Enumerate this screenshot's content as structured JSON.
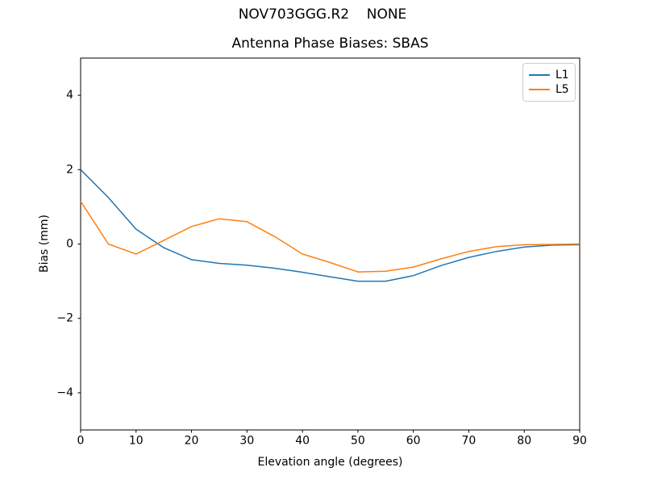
{
  "figure": {
    "suptitle": "NOV703GGG.R2    NONE",
    "axes_title": "Antenna Phase Biases: SBAS",
    "xlabel": "Elevation angle (degrees)",
    "ylabel": "Bias (mm)"
  },
  "chart_data": {
    "type": "line",
    "title": "Antenna Phase Biases: SBAS",
    "suptitle": "NOV703GGG.R2    NONE",
    "xlabel": "Elevation angle (degrees)",
    "ylabel": "Bias (mm)",
    "xlim": [
      0,
      90
    ],
    "ylim": [
      -5,
      5
    ],
    "grid": false,
    "legend_position": "upper right",
    "x_ticks": [
      0,
      10,
      20,
      30,
      40,
      50,
      60,
      70,
      80,
      90
    ],
    "x_tick_labels": [
      "0",
      "10",
      "20",
      "30",
      "40",
      "50",
      "60",
      "70",
      "80",
      "90"
    ],
    "y_ticks": [
      -4,
      -2,
      0,
      2,
      4
    ],
    "y_tick_labels": [
      "−4",
      "−2",
      "0",
      "2",
      "4"
    ],
    "x": [
      0,
      5,
      10,
      15,
      20,
      25,
      30,
      35,
      40,
      45,
      50,
      55,
      60,
      65,
      70,
      75,
      80,
      85,
      90
    ],
    "series": [
      {
        "name": "L1",
        "color": "#1f77b4",
        "values": [
          2.0,
          1.25,
          0.4,
          -0.1,
          -0.42,
          -0.52,
          -0.57,
          -0.65,
          -0.76,
          -0.88,
          -1.0,
          -1.0,
          -0.85,
          -0.58,
          -0.36,
          -0.2,
          -0.08,
          -0.03,
          -0.02
        ]
      },
      {
        "name": "L5",
        "color": "#ff7f0e",
        "values": [
          1.15,
          0.0,
          -0.27,
          0.1,
          0.47,
          0.68,
          0.6,
          0.2,
          -0.27,
          -0.5,
          -0.75,
          -0.73,
          -0.62,
          -0.4,
          -0.2,
          -0.07,
          -0.02,
          -0.01,
          0.0
        ]
      }
    ],
    "axis_color": "#000000"
  }
}
